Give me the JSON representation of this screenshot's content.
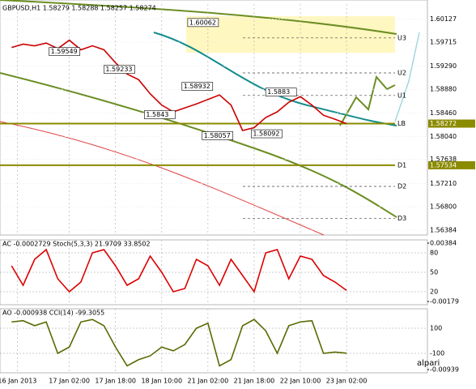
{
  "chart_data": [
    {
      "type": "line",
      "title": "GBPUSD,H1  1.58279 1.58288 1.58257 1.58274",
      "x": [
        0,
        4,
        8,
        12,
        16,
        20,
        24,
        28,
        32,
        36,
        40,
        44,
        48,
        52,
        56,
        60,
        64,
        68,
        72,
        76,
        80,
        84,
        88,
        92,
        96,
        100,
        104,
        108,
        112,
        116
      ],
      "series": [
        {
          "color": "#cc0000",
          "values": [
            1.5962,
            1.5968,
            1.5965,
            1.597,
            1.596,
            1.5975,
            1.5958,
            1.5965,
            1.5958,
            1.5935,
            1.5915,
            1.5905,
            1.588,
            1.586,
            1.5848,
            1.5855,
            1.5862,
            1.587,
            1.5878,
            1.586,
            1.5815,
            1.582,
            1.5838,
            1.5848,
            1.5865,
            1.5875,
            1.586,
            1.5842,
            1.5835,
            1.5827
          ]
        }
      ],
      "xlim": [
        -4,
        144
      ],
      "xticks": [
        {
          "value": 2,
          "label": "16 Jan 2013"
        },
        {
          "value": 20,
          "label": "17 Jan 02:00"
        },
        {
          "value": 36,
          "label": "17 Jan 18:00"
        },
        {
          "value": 52,
          "label": "18 Jan 10:00"
        },
        {
          "value": 68,
          "label": "21 Jan 02:00"
        },
        {
          "value": 84,
          "label": "21 Jan 18:00"
        },
        {
          "value": 100,
          "label": "22 Jan 10:00"
        },
        {
          "value": 116,
          "label": "23 Jan 02:00"
        }
      ],
      "ylim": [
        1.56298,
        1.6039
      ],
      "yticks": [
        1.60127,
        1.59715,
        {
          "value": 1.5929,
          "label": "1.59290"
        },
        {
          "value": 1.5888,
          "label": "1.58880"
        },
        {
          "value": 1.5846,
          "label": "1.58460"
        },
        {
          "value": 1.5804,
          "label": "1.58040"
        },
        1.57638,
        {
          "value": 1.5721,
          "label": "1.57210"
        },
        {
          "value": 1.568,
          "label": "1.56800"
        },
        1.56384
      ],
      "highlight_ticks": [
        1.58272,
        1.57534
      ],
      "levels": [
        {
          "label": "U3",
          "value": 1.5979
        },
        {
          "label": "U2",
          "value": 1.5917
        },
        {
          "label": "U1",
          "value": 1.5877
        },
        {
          "label": "LB",
          "value": 1.58272
        },
        {
          "label": "D1",
          "value": 1.57534
        },
        {
          "label": "D2",
          "value": 1.5716
        },
        {
          "label": "D3",
          "value": 1.5659
        }
      ],
      "annotations": [
        {
          "x": 61,
          "value": 1.60062
        },
        {
          "x": 13,
          "value": 1.59549
        },
        {
          "x": 32,
          "value": 1.59233
        },
        {
          "x": 59,
          "value": 1.58932
        },
        {
          "x": 88,
          "value": 1.5883
        },
        {
          "x": 46,
          "value": 1.5843
        },
        {
          "x": 66,
          "value": 1.58057
        },
        {
          "x": 83,
          "value": 1.58092
        }
      ],
      "grid": true
    },
    {
      "type": "line",
      "title": "AC -0.0002729  Stoch(5,3,3) 21.9709 33.8502",
      "x": [
        0,
        4,
        8,
        12,
        16,
        20,
        24,
        28,
        32,
        36,
        40,
        44,
        48,
        52,
        56,
        60,
        64,
        68,
        72,
        76,
        80,
        84,
        88,
        92,
        96,
        100,
        104,
        108,
        112,
        116
      ],
      "series": [
        {
          "color": "#dd0000",
          "values": [
            60,
            30,
            70,
            85,
            40,
            20,
            35,
            80,
            85,
            60,
            30,
            40,
            75,
            50,
            20,
            25,
            70,
            60,
            30,
            70,
            45,
            20,
            80,
            85,
            40,
            75,
            70,
            45,
            35,
            22
          ]
        }
      ],
      "xlim": [
        -4,
        144
      ],
      "ylim": [
        0,
        100
      ],
      "yticks": [
        80,
        50,
        20
      ],
      "y2lim": [
        -0.00179,
        0.00384
      ],
      "y2ticks": [
        0.00384,
        -0.00179
      ]
    },
    {
      "type": "line",
      "title": "AO -0.000938  CCI(14) -99.3055",
      "x": [
        0,
        4,
        8,
        12,
        16,
        20,
        24,
        28,
        32,
        36,
        40,
        44,
        48,
        52,
        56,
        60,
        64,
        68,
        72,
        76,
        80,
        84,
        88,
        92,
        96,
        100,
        104,
        108,
        112,
        116
      ],
      "series": [
        {
          "color": "#556b00",
          "values": [
            150,
            160,
            120,
            150,
            -100,
            -50,
            150,
            170,
            120,
            -50,
            -200,
            -150,
            -120,
            -50,
            -80,
            -30,
            100,
            140,
            -200,
            -150,
            120,
            170,
            80,
            -100,
            120,
            150,
            160,
            -100,
            -90,
            -99
          ]
        }
      ],
      "xlim": [
        -4,
        144
      ],
      "ylim": [
        -255,
        255
      ],
      "yticks": [
        100,
        -100
      ],
      "y2lim": [
        -0.00939,
        0.00939
      ],
      "y2ticks": [
        -0.00939
      ]
    }
  ],
  "watermark": "alpari"
}
